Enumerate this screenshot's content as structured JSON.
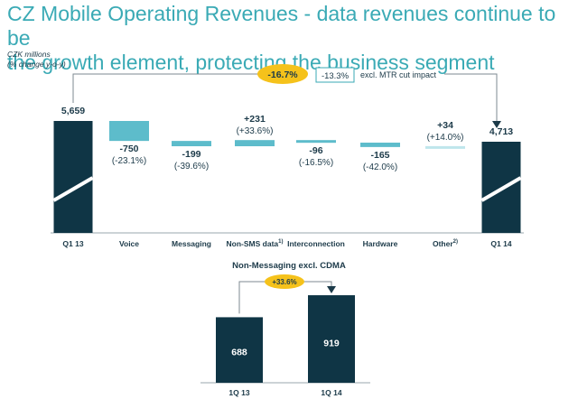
{
  "title": "CZ Mobile Operating Revenues - data revenues continue to be the growth element, protecting the business segment",
  "title_line1": "CZ Mobile Operating Revenues - data revenues continue to be",
  "title_line2": "the growth element, protecting the business segment",
  "unit_line1": "CZK millions",
  "unit_line2": "(% change y-o-y)",
  "colors": {
    "title": "#3aaab5",
    "navy": "#0f3545",
    "teal": "#5dbccb",
    "pale_teal": "#bfe6ec",
    "yellow": "#f5c21b",
    "text": "#1c3a49"
  },
  "chart_data": [
    {
      "type": "bar",
      "subtype": "waterfall",
      "title": "",
      "ylabel": "CZK millions (% change y-o-y)",
      "categories": [
        "Q1 13",
        "Voice",
        "Messaging",
        "Non-SMS data",
        "Interconnection",
        "Hardware",
        "Other",
        "Q1 14"
      ],
      "category_superscripts": [
        "",
        "",
        "",
        "1)",
        "",
        "",
        "2)",
        ""
      ],
      "values": [
        5659,
        -750,
        -199,
        231,
        -96,
        -165,
        34,
        4713
      ],
      "value_labels": [
        "5,659",
        "-750",
        "-199",
        "+231",
        "-96",
        "-165",
        "+34",
        "4,713"
      ],
      "pct_labels": [
        "",
        "(-23.1%)",
        "(-39.6%)",
        "(+33.6%)",
        "(-16.5%)",
        "(-42.0%)",
        "(+14.0%)",
        ""
      ],
      "bar_kind": [
        "total",
        "delta",
        "delta",
        "delta",
        "delta",
        "delta",
        "delta",
        "total"
      ],
      "axis_break": true,
      "annotation": {
        "total_change": "-16.7%",
        "excl_value": "-13.3%",
        "excl_label": "excl. MTR cut impact"
      }
    },
    {
      "type": "bar",
      "title": "Non-Messaging excl. CDMA",
      "categories": [
        "1Q 13",
        "1Q 14"
      ],
      "values": [
        688,
        919
      ],
      "value_labels": [
        "688",
        "919"
      ],
      "ylim": [
        0,
        1000
      ],
      "annotation": {
        "change": "+33.6%"
      }
    }
  ]
}
